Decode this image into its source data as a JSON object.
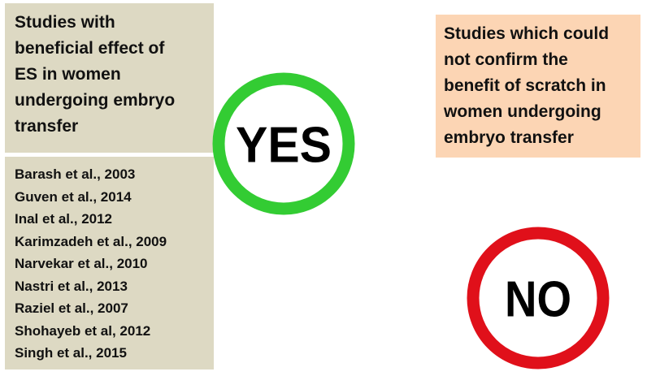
{
  "left_box": {
    "title_lines": [
      "Studies with",
      "beneficial effect  of",
      "ES in women",
      "undergoing embryo",
      "transfer"
    ],
    "studies": [
      "Barash et al., 2003",
      "Guven et al., 2014",
      "Inal et al., 2012",
      "Karimzadeh et al., 2009",
      "Narvekar et al., 2010",
      "Nastri et al., 2013",
      "Raziel et al., 2007",
      "Shohayeb et al, 2012",
      "Singh et al., 2015"
    ]
  },
  "yes_sign": {
    "label": "YES"
  },
  "right_box": {
    "title_lines": [
      "Studies which could",
      "not confirm the",
      "benefit of scratch in",
      "women undergoing",
      "embryo transfer"
    ]
  },
  "no_sign": {
    "label": "NO"
  }
}
